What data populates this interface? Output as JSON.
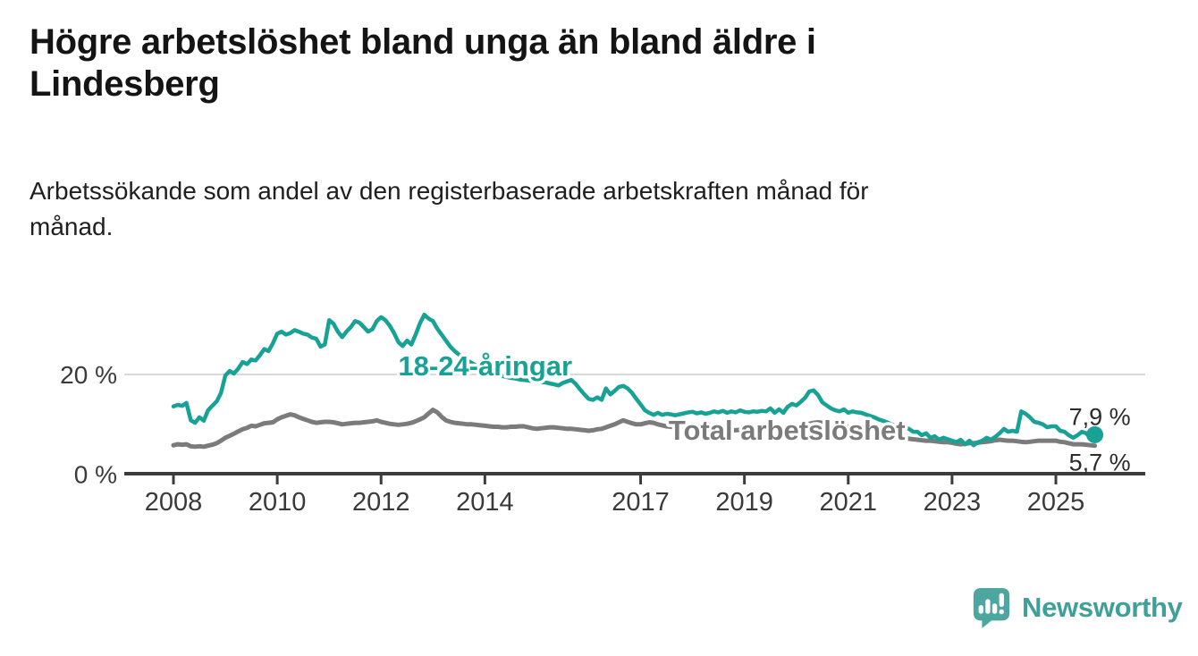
{
  "header": {
    "title_line1": "Högre arbetslöshet bland unga än bland äldre i",
    "title_line2": "Lindesberg",
    "subtitle_line1": "Arbetssökande som andel av den registerbaserade arbetskraften månad för",
    "subtitle_line2": "månad."
  },
  "footer": {
    "brand": "Newsworthy",
    "logo_icon": "bar-chart-speech-bubble-icon",
    "brand_color": "#3fa09a",
    "logo_bubble_color": "#4da7a0"
  },
  "chart_data": {
    "type": "line",
    "title": "Högre arbetslöshet bland unga än bland äldre i Lindesberg",
    "subtitle": "Arbetssökande som andel av den registerbaserade arbetskraften månad för månad.",
    "x_unit": "time, monthly from January 2008 to October 2025",
    "start_year": 2008,
    "points_per_year": 12,
    "xlim": [
      2007.1,
      2026.7
    ],
    "ylim": [
      0,
      35
    ],
    "grid": "single horizontal gridline at 20 %",
    "grid_color": "#d9d9d9",
    "axis_color": "#3c3c3c",
    "legend_position": "direct labels on lines",
    "x_ticks": [
      {
        "year": 2008,
        "label": "2008"
      },
      {
        "year": 2010,
        "label": "2010"
      },
      {
        "year": 2012,
        "label": "2012"
      },
      {
        "year": 2014,
        "label": "2014"
      },
      {
        "year": 2017,
        "label": "2017"
      },
      {
        "year": 2019,
        "label": "2019"
      },
      {
        "year": 2021,
        "label": "2021"
      },
      {
        "year": 2023,
        "label": "2023"
      },
      {
        "year": 2025,
        "label": "2025"
      }
    ],
    "y_ticks": [
      {
        "value": 0,
        "label": "0 %",
        "grid": false
      },
      {
        "value": 20,
        "label": "20 %",
        "grid": true
      }
    ],
    "series": [
      {
        "id": "youth",
        "name": "18-24-åringar",
        "color": "#17a295",
        "end_label": "7,9 %",
        "end_value": 7.9,
        "end_marker": "dot",
        "label_anchor": {
          "year": 2012.33,
          "value": 19.8,
          "align": "start"
        },
        "values": [
          13.6,
          13.9,
          13.7,
          14.3,
          10.8,
          10.3,
          11.4,
          10.7,
          12.8,
          13.7,
          14.6,
          16.3,
          19.8,
          20.7,
          20.2,
          21.2,
          22.5,
          22.1,
          23.0,
          22.8,
          23.9,
          25.1,
          24.7,
          26.3,
          28.2,
          28.6,
          28.0,
          28.3,
          28.9,
          28.6,
          28.2,
          28.0,
          27.4,
          27.2,
          25.6,
          26.0,
          30.9,
          30.2,
          28.6,
          27.5,
          28.6,
          29.5,
          30.7,
          30.4,
          29.5,
          28.6,
          29.1,
          30.7,
          31.5,
          30.9,
          29.8,
          28.3,
          26.5,
          25.7,
          26.8,
          26.0,
          28.0,
          30.3,
          32.0,
          31.2,
          30.7,
          29.2,
          28.0,
          26.8,
          25.6,
          24.7,
          24.0,
          23.4,
          22.8,
          22.3,
          21.8,
          21.3,
          20.9,
          20.5,
          20.2,
          19.9,
          19.7,
          19.5,
          19.3,
          19.2,
          19.0,
          18.9,
          18.8,
          18.7,
          18.6,
          18.5,
          18.4,
          18.2,
          18.0,
          17.8,
          18.3,
          18.6,
          18.9,
          18.1,
          17.0,
          16.0,
          15.1,
          14.9,
          15.4,
          14.9,
          17.2,
          16.0,
          16.7,
          17.5,
          17.7,
          17.2,
          16.3,
          15.1,
          14.0,
          12.8,
          12.3,
          11.9,
          12.3,
          11.9,
          12.1,
          12.0,
          11.8,
          12.0,
          12.2,
          12.4,
          12.5,
          12.2,
          12.4,
          12.1,
          12.3,
          12.6,
          12.4,
          12.7,
          12.3,
          12.6,
          12.4,
          12.8,
          12.5,
          12.4,
          12.6,
          12.5,
          12.7,
          12.6,
          13.2,
          12.3,
          13.0,
          12.3,
          13.5,
          14.1,
          13.8,
          14.5,
          15.3,
          16.6,
          16.8,
          15.9,
          14.4,
          13.8,
          13.2,
          12.8,
          12.6,
          13.0,
          12.3,
          12.6,
          12.4,
          12.3,
          12.0,
          11.7,
          11.4,
          11.0,
          10.7,
          10.4,
          10.0,
          9.8,
          9.6,
          9.4,
          9.1,
          8.5,
          8.5,
          7.8,
          8.2,
          7.3,
          7.6,
          6.9,
          7.3,
          7.0,
          6.7,
          6.4,
          6.9,
          6.0,
          6.7,
          5.8,
          6.4,
          6.7,
          7.3,
          6.9,
          7.5,
          8.2,
          9.1,
          8.5,
          8.7,
          8.5,
          12.6,
          12.1,
          11.4,
          10.5,
          10.3,
          10.0,
          9.4,
          9.6,
          9.6,
          8.7,
          8.5,
          7.8,
          7.3,
          7.8,
          8.5,
          8.2,
          7.3,
          7.9
        ]
      },
      {
        "id": "total",
        "name": "Total arbetslöshet",
        "color": "#7b7b7b",
        "end_label": "5,7 %",
        "end_value": 5.7,
        "end_marker": "none",
        "label_anchor": {
          "year": 2017.54,
          "value": 6.9,
          "align": "start"
        },
        "values": [
          5.8,
          6.0,
          5.9,
          6.0,
          5.6,
          5.5,
          5.6,
          5.5,
          5.7,
          5.9,
          6.2,
          6.7,
          7.3,
          7.7,
          8.1,
          8.6,
          9.0,
          9.3,
          9.7,
          9.6,
          9.9,
          10.2,
          10.3,
          10.4,
          11.0,
          11.4,
          11.7,
          12.0,
          11.8,
          11.4,
          11.1,
          10.8,
          10.5,
          10.3,
          10.4,
          10.5,
          10.5,
          10.4,
          10.2,
          10.0,
          10.1,
          10.2,
          10.3,
          10.3,
          10.4,
          10.5,
          10.6,
          10.8,
          10.5,
          10.3,
          10.1,
          10.0,
          9.9,
          10.0,
          10.1,
          10.3,
          10.6,
          11.0,
          11.4,
          12.2,
          12.9,
          12.4,
          11.5,
          10.8,
          10.5,
          10.3,
          10.2,
          10.1,
          10.0,
          10.0,
          9.9,
          9.8,
          9.7,
          9.6,
          9.5,
          9.5,
          9.4,
          9.4,
          9.5,
          9.5,
          9.6,
          9.6,
          9.4,
          9.2,
          9.1,
          9.2,
          9.3,
          9.4,
          9.4,
          9.3,
          9.2,
          9.1,
          9.1,
          9.0,
          8.9,
          8.8,
          8.7,
          8.8,
          9.0,
          9.1,
          9.4,
          9.7,
          10.0,
          10.4,
          10.8,
          10.5,
          10.2,
          10.0,
          10.0,
          10.2,
          10.4,
          10.3,
          10.0,
          9.8,
          9.6,
          9.5,
          9.4,
          9.3,
          9.3,
          9.2,
          9.2,
          9.1,
          9.0,
          9.0,
          8.9,
          8.9,
          9.0,
          8.9,
          8.9,
          8.8,
          8.8,
          8.9,
          8.9,
          8.8,
          8.8,
          8.9,
          8.9,
          9.0,
          9.1,
          9.0,
          9.1,
          9.1,
          9.2,
          9.3,
          9.4,
          9.5,
          9.8,
          10.1,
          10.3,
          10.4,
          10.3,
          10.2,
          10.0,
          9.9,
          9.7,
          9.6,
          9.5,
          9.4,
          9.2,
          9.0,
          8.8,
          8.6,
          8.4,
          8.2,
          8.0,
          7.9,
          7.7,
          7.5,
          7.4,
          7.3,
          7.1,
          7.0,
          6.9,
          6.8,
          6.7,
          6.7,
          6.6,
          6.5,
          6.4,
          6.4,
          6.3,
          6.1,
          6.0,
          6.1,
          6.2,
          6.2,
          6.3,
          6.4,
          6.5,
          6.6,
          6.8,
          6.9,
          6.8,
          6.7,
          6.7,
          6.6,
          6.5,
          6.4,
          6.5,
          6.6,
          6.7,
          6.7,
          6.7,
          6.7,
          6.7,
          6.5,
          6.4,
          6.2,
          6.0,
          6.0,
          6.0,
          5.9,
          5.8,
          5.7
        ]
      }
    ]
  }
}
